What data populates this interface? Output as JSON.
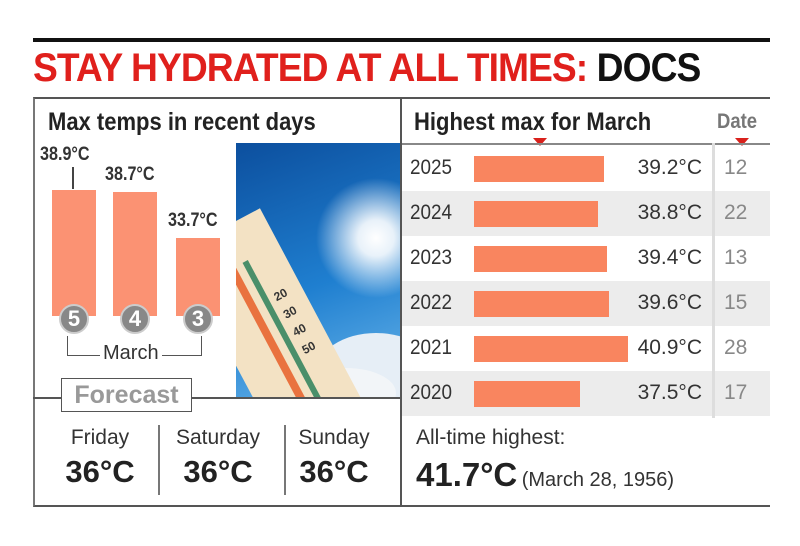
{
  "headline": {
    "red": "STAY HYDRATED AT ALL TIMES:",
    "black": " DOCS"
  },
  "recent": {
    "title": "Max temps in recent days",
    "month": "March"
  },
  "forecast": {
    "label": "Forecast",
    "days": [
      {
        "day": "Friday",
        "temp": "36°C"
      },
      {
        "day": "Saturday",
        "temp": "36°C"
      },
      {
        "day": "Sunday",
        "temp": "36°C"
      }
    ]
  },
  "march_max": {
    "title": "Highest max for March",
    "date_header": "Date"
  },
  "all_time": {
    "label": "All-time highest:",
    "temp": "41.7°C",
    "date": "(March 28, 1956)"
  },
  "colors": {
    "headline_red": "#e0201c",
    "bar": "#fb9273",
    "hbar": "#f9855f"
  },
  "chart_data": [
    {
      "type": "bar",
      "title": "Max temps in recent days",
      "xlabel": "March",
      "categories": [
        "5",
        "4",
        "3"
      ],
      "values": [
        38.9,
        38.7,
        33.7
      ],
      "labels": [
        "38.9°C",
        "38.7°C",
        "33.7°C"
      ],
      "unit": "°C"
    },
    {
      "type": "bar",
      "orientation": "horizontal",
      "title": "Highest max for March",
      "categories": [
        "2025",
        "2024",
        "2023",
        "2022",
        "2021",
        "2020"
      ],
      "values": [
        39.2,
        38.8,
        39.4,
        39.6,
        40.9,
        37.5
      ],
      "labels": [
        "39.2°C",
        "38.8°C",
        "39.4°C",
        "39.6°C",
        "40.9°C",
        "37.5°C"
      ],
      "dates": [
        "12",
        "22",
        "13",
        "15",
        "28",
        "17"
      ],
      "unit": "°C"
    }
  ]
}
